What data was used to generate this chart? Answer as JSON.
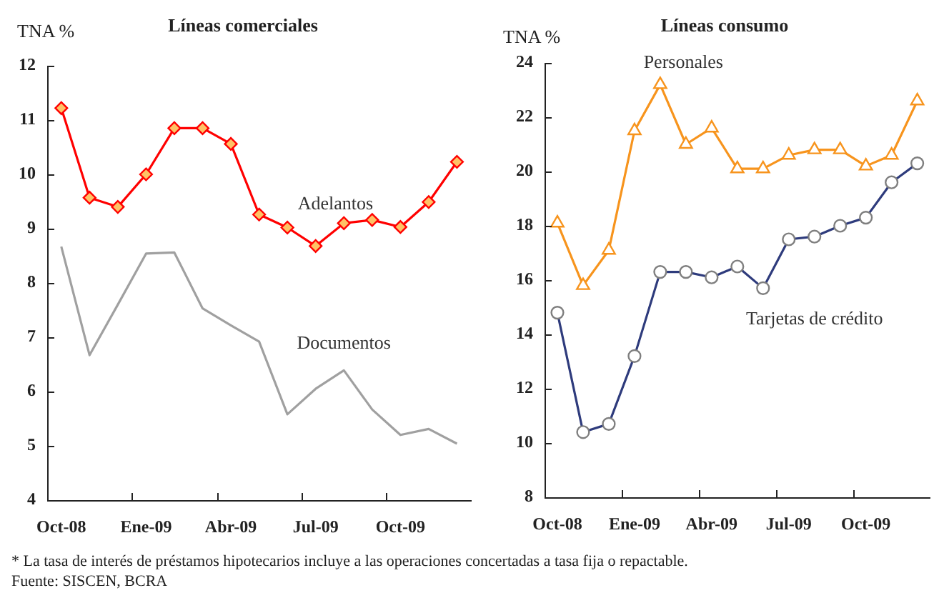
{
  "chart_data": [
    {
      "type": "line",
      "title": "Líneas comerciales",
      "ylabel": "TNA %",
      "categories": [
        "Oct-08",
        null,
        null,
        "Ene-09",
        null,
        null,
        "Abr-09",
        null,
        null,
        "Jul-09",
        null,
        null,
        "Oct-09",
        null,
        null
      ],
      "series": [
        {
          "name": "Adelantos",
          "color": "#ff0000",
          "marker": "diamond",
          "values": [
            11.22,
            9.57,
            9.4,
            10.0,
            10.85,
            10.85,
            10.56,
            9.26,
            9.02,
            8.68,
            9.1,
            9.16,
            9.03,
            9.49,
            10.23
          ]
        },
        {
          "name": "Documentos",
          "color": "#a0a0a0",
          "marker": "none",
          "values": [
            8.67,
            6.67,
            7.6,
            8.54,
            8.56,
            7.53,
            7.22,
            6.92,
            5.58,
            6.05,
            6.39,
            5.67,
            5.2,
            5.31,
            5.04
          ]
        }
      ],
      "ylim": [
        4,
        12
      ],
      "yticks": [
        4,
        5,
        6,
        7,
        8,
        9,
        10,
        11,
        12
      ],
      "annotations": [
        "* La tasa de interés de préstamos hipotecarios incluye a las operaciones concertadas a tasa fija o repactable.",
        "Fuente: SISCEN, BCRA"
      ]
    },
    {
      "type": "line",
      "title": "Líneas consumo",
      "ylabel": "TNA %",
      "categories": [
        "Oct-08",
        null,
        null,
        "Ene-09",
        null,
        null,
        "Abr-09",
        null,
        null,
        "Jul-09",
        null,
        null,
        "Oct-09",
        null,
        null
      ],
      "series": [
        {
          "name": "Personales",
          "color": "#f7941d",
          "marker": "triangle",
          "values": [
            18.1,
            15.8,
            17.1,
            21.5,
            23.2,
            21.0,
            21.6,
            20.1,
            20.1,
            20.6,
            20.8,
            20.8,
            20.2,
            20.6,
            22.6
          ]
        },
        {
          "name": "Tarjetas de crédito",
          "color": "#2e3b7c",
          "marker": "circle",
          "values": [
            14.8,
            10.4,
            10.7,
            13.2,
            16.3,
            16.3,
            16.1,
            16.5,
            15.7,
            17.5,
            17.6,
            18.0,
            18.3,
            19.6,
            20.3
          ]
        }
      ],
      "ylim": [
        8,
        24
      ],
      "yticks": [
        8,
        10,
        12,
        14,
        16,
        18,
        20,
        22,
        24
      ]
    }
  ]
}
